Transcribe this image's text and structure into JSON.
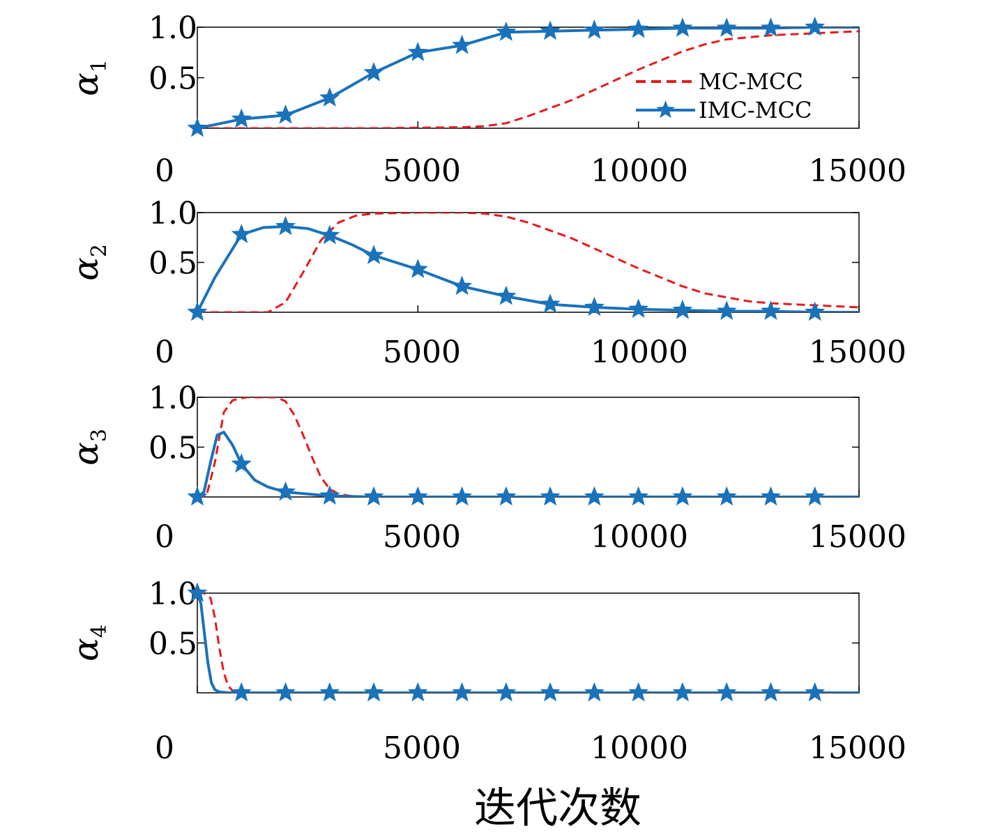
{
  "chart_data": [
    {
      "type": "line",
      "ylabel_main": "α",
      "ylabel_sub": "1",
      "xlim": [
        0,
        15000
      ],
      "ylim": [
        0,
        1
      ],
      "xticks": [
        "0",
        "5000",
        "10000",
        "15000"
      ],
      "yticks": [
        "0.5",
        "1.0"
      ],
      "legend": {
        "position": "bottom-right",
        "entries": [
          "MC-MCC",
          "IMC-MCC"
        ]
      },
      "series": [
        {
          "name": "MC-MCC",
          "style": "dashed",
          "color": "#e8191c",
          "x": [
            0,
            1000,
            2000,
            3000,
            4000,
            5000,
            6000,
            6500,
            7000,
            7500,
            8000,
            8500,
            9000,
            9500,
            10000,
            10500,
            11000,
            11500,
            12000,
            13000,
            14000,
            15000
          ],
          "y": [
            0,
            0,
            0,
            0,
            0,
            0.005,
            0.01,
            0.02,
            0.05,
            0.12,
            0.2,
            0.28,
            0.38,
            0.48,
            0.58,
            0.67,
            0.76,
            0.83,
            0.88,
            0.92,
            0.94,
            0.96
          ]
        },
        {
          "name": "IMC-MCC",
          "style": "solid-star",
          "color": "#1a72bb",
          "x": [
            0,
            1000,
            2000,
            3000,
            4000,
            5000,
            6000,
            7000,
            8000,
            9000,
            10000,
            11000,
            12000,
            13000,
            14000,
            15000
          ],
          "y": [
            0,
            0.09,
            0.13,
            0.3,
            0.55,
            0.75,
            0.82,
            0.95,
            0.96,
            0.97,
            0.98,
            0.99,
            0.99,
            0.99,
            1.0,
            1.0
          ]
        }
      ]
    },
    {
      "type": "line",
      "ylabel_main": "α",
      "ylabel_sub": "2",
      "xlim": [
        0,
        15000
      ],
      "ylim": [
        0,
        1
      ],
      "xticks": [
        "0",
        "5000",
        "10000",
        "15000"
      ],
      "yticks": [
        "0.5",
        "1.0"
      ],
      "series": [
        {
          "name": "MC-MCC",
          "style": "dashed",
          "color": "#e8191c",
          "x": [
            0,
            1000,
            1600,
            2000,
            2400,
            2800,
            3200,
            3600,
            4000,
            5000,
            6000,
            6500,
            7000,
            7500,
            8000,
            8500,
            9000,
            9500,
            10000,
            10500,
            11000,
            11500,
            12000,
            12500,
            13000,
            14000,
            15000
          ],
          "y": [
            0,
            0,
            0,
            0.1,
            0.4,
            0.72,
            0.9,
            0.97,
            0.99,
            1.0,
            1.0,
            0.99,
            0.96,
            0.9,
            0.82,
            0.74,
            0.64,
            0.54,
            0.44,
            0.35,
            0.26,
            0.19,
            0.15,
            0.11,
            0.09,
            0.07,
            0.05
          ]
        },
        {
          "name": "IMC-MCC",
          "style": "solid-star",
          "color": "#1a72bb",
          "x": [
            0,
            400,
            1000,
            1500,
            2000,
            2500,
            3000,
            3500,
            4000,
            5000,
            6000,
            7000,
            8000,
            9000,
            10000,
            11000,
            12000,
            13000,
            14000,
            15000
          ],
          "y": [
            0,
            0.35,
            0.78,
            0.85,
            0.86,
            0.84,
            0.77,
            0.68,
            0.57,
            0.43,
            0.26,
            0.16,
            0.08,
            0.05,
            0.03,
            0.02,
            0.01,
            0.01,
            0.0,
            0.0
          ]
        }
      ]
    },
    {
      "type": "line",
      "ylabel_main": "α",
      "ylabel_sub": "3",
      "xlim": [
        0,
        15000
      ],
      "ylim": [
        0,
        1
      ],
      "xticks": [
        "0",
        "5000",
        "10000",
        "15000"
      ],
      "yticks": [
        "0.5",
        "1.0"
      ],
      "series": [
        {
          "name": "MC-MCC",
          "style": "dashed",
          "color": "#e8191c",
          "x": [
            0,
            200,
            400,
            600,
            800,
            1100,
            1500,
            1800,
            2000,
            2200,
            2400,
            2600,
            2800,
            3000,
            3200,
            3600,
            4000,
            15000
          ],
          "y": [
            0,
            0,
            0.35,
            0.85,
            0.97,
            1.0,
            1.0,
            1.0,
            0.96,
            0.82,
            0.62,
            0.4,
            0.2,
            0.08,
            0.03,
            0.0,
            0.0,
            0.0
          ]
        },
        {
          "name": "IMC-MCC",
          "style": "solid-star",
          "color": "#1a72bb",
          "x": [
            0,
            150,
            300,
            450,
            600,
            800,
            1000,
            1300,
            1600,
            2000,
            3000,
            4000,
            15000
          ],
          "y": [
            0,
            0.05,
            0.35,
            0.62,
            0.65,
            0.52,
            0.33,
            0.17,
            0.1,
            0.05,
            0.01,
            0.0,
            0.0
          ]
        }
      ]
    },
    {
      "type": "line",
      "ylabel_main": "α",
      "ylabel_sub": "4",
      "xlim": [
        0,
        15000
      ],
      "ylim": [
        0,
        1
      ],
      "xticks": [
        "0",
        "5000",
        "10000",
        "15000"
      ],
      "yticks": [
        "0.5",
        "1.0"
      ],
      "series": [
        {
          "name": "MC-MCC",
          "style": "dashed",
          "color": "#e8191c",
          "x": [
            0,
            150,
            300,
            400,
            500,
            600,
            700,
            800,
            1000,
            15000
          ],
          "y": [
            1.0,
            1.0,
            0.95,
            0.75,
            0.45,
            0.2,
            0.07,
            0.02,
            0.0,
            0.0
          ]
        },
        {
          "name": "IMC-MCC",
          "style": "solid-star",
          "color": "#1a72bb",
          "x": [
            0,
            80,
            160,
            240,
            320,
            400,
            500,
            700,
            15000
          ],
          "y": [
            1.0,
            0.9,
            0.6,
            0.3,
            0.1,
            0.03,
            0.01,
            0.0,
            0.0
          ]
        }
      ]
    }
  ],
  "xlabel": "迭代次数"
}
